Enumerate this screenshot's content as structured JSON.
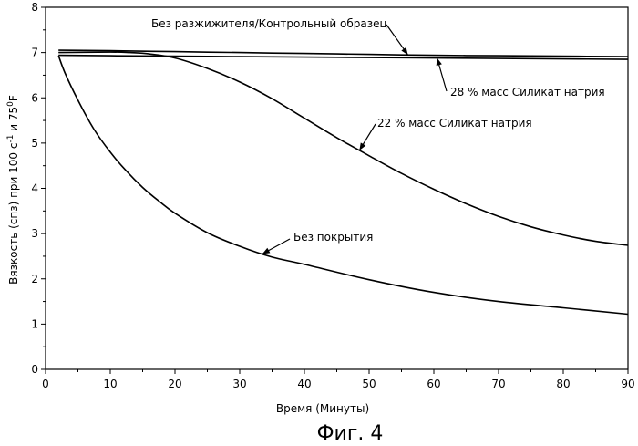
{
  "chart_data": {
    "type": "line",
    "xlabel": "Время (Минуты)",
    "ylabel": "Вязкость (спз) при 100 с",
    "ylabel_sup1": "-1",
    "ylabel_mid": " и 75",
    "ylabel_sup2": "0",
    "ylabel_end": "F",
    "xlim": [
      0,
      90
    ],
    "ylim": [
      0,
      8
    ],
    "xticks": [
      0,
      10,
      20,
      30,
      40,
      50,
      60,
      70,
      80,
      90
    ],
    "yticks": [
      0,
      1,
      2,
      3,
      4,
      5,
      6,
      7,
      8
    ],
    "grid": false,
    "series": [
      {
        "name": "Без разжижителя/Контрольный образец",
        "x": [
          2,
          10,
          20,
          30,
          40,
          50,
          60,
          70,
          80,
          90
        ],
        "y": [
          7.05,
          7.04,
          7.02,
          7.0,
          6.98,
          6.96,
          6.94,
          6.93,
          6.92,
          6.91
        ]
      },
      {
        "name": "28 % масс Силикат натрия",
        "x": [
          2,
          10,
          20,
          30,
          40,
          50,
          60,
          70,
          80,
          90
        ],
        "y": [
          6.94,
          6.93,
          6.92,
          6.91,
          6.9,
          6.89,
          6.88,
          6.87,
          6.86,
          6.85
        ]
      },
      {
        "name": "22 % масс Силикат натрия",
        "x": [
          2,
          10,
          13,
          16,
          20,
          25,
          30,
          35,
          40,
          45,
          50,
          55,
          60,
          65,
          70,
          75,
          80,
          85,
          90
        ],
        "y": [
          7.0,
          7.01,
          7.0,
          6.97,
          6.88,
          6.65,
          6.35,
          5.98,
          5.55,
          5.12,
          4.72,
          4.33,
          3.98,
          3.66,
          3.38,
          3.15,
          2.97,
          2.83,
          2.74
        ]
      },
      {
        "name": "Без покрытия",
        "x": [
          2,
          3,
          5,
          7.5,
          10,
          12.5,
          15,
          17.5,
          20,
          25,
          30,
          35,
          40,
          50,
          60,
          70,
          80,
          90
        ],
        "y": [
          6.93,
          6.55,
          5.95,
          5.3,
          4.8,
          4.38,
          4.02,
          3.72,
          3.45,
          3.02,
          2.72,
          2.48,
          2.32,
          1.98,
          1.7,
          1.5,
          1.36,
          1.22
        ]
      }
    ],
    "annotations": [
      {
        "text": "Без разжижителя/Контрольный образец",
        "series": 0
      },
      {
        "text": "28 % масс Силикат натрия",
        "series": 1
      },
      {
        "text": "22 % масс Силикат натрия",
        "series": 2
      },
      {
        "text": "Без покрытия",
        "series": 3
      }
    ]
  },
  "caption": "Фиг. 4"
}
